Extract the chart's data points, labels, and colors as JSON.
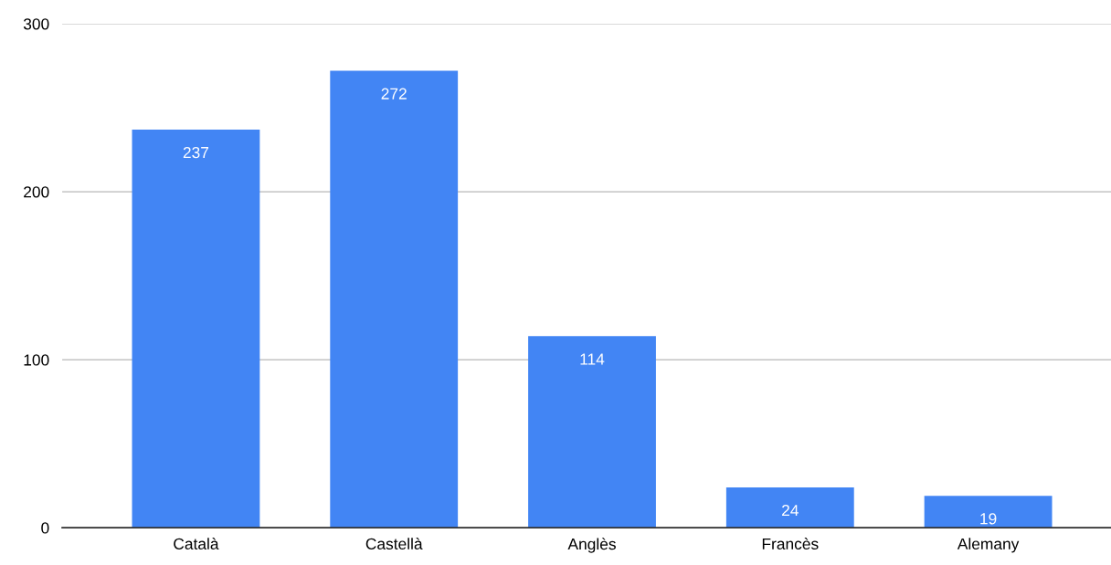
{
  "chart_data": {
    "type": "bar",
    "categories": [
      "Català",
      "Castellà",
      "Anglès",
      "Francès",
      "Alemany"
    ],
    "values": [
      237,
      272,
      114,
      24,
      19
    ],
    "color": "#4285f4",
    "ylim": [
      0,
      300
    ],
    "yticks": [
      0,
      100,
      200,
      300
    ],
    "grid": "y",
    "data_labels": true,
    "legend": false
  }
}
